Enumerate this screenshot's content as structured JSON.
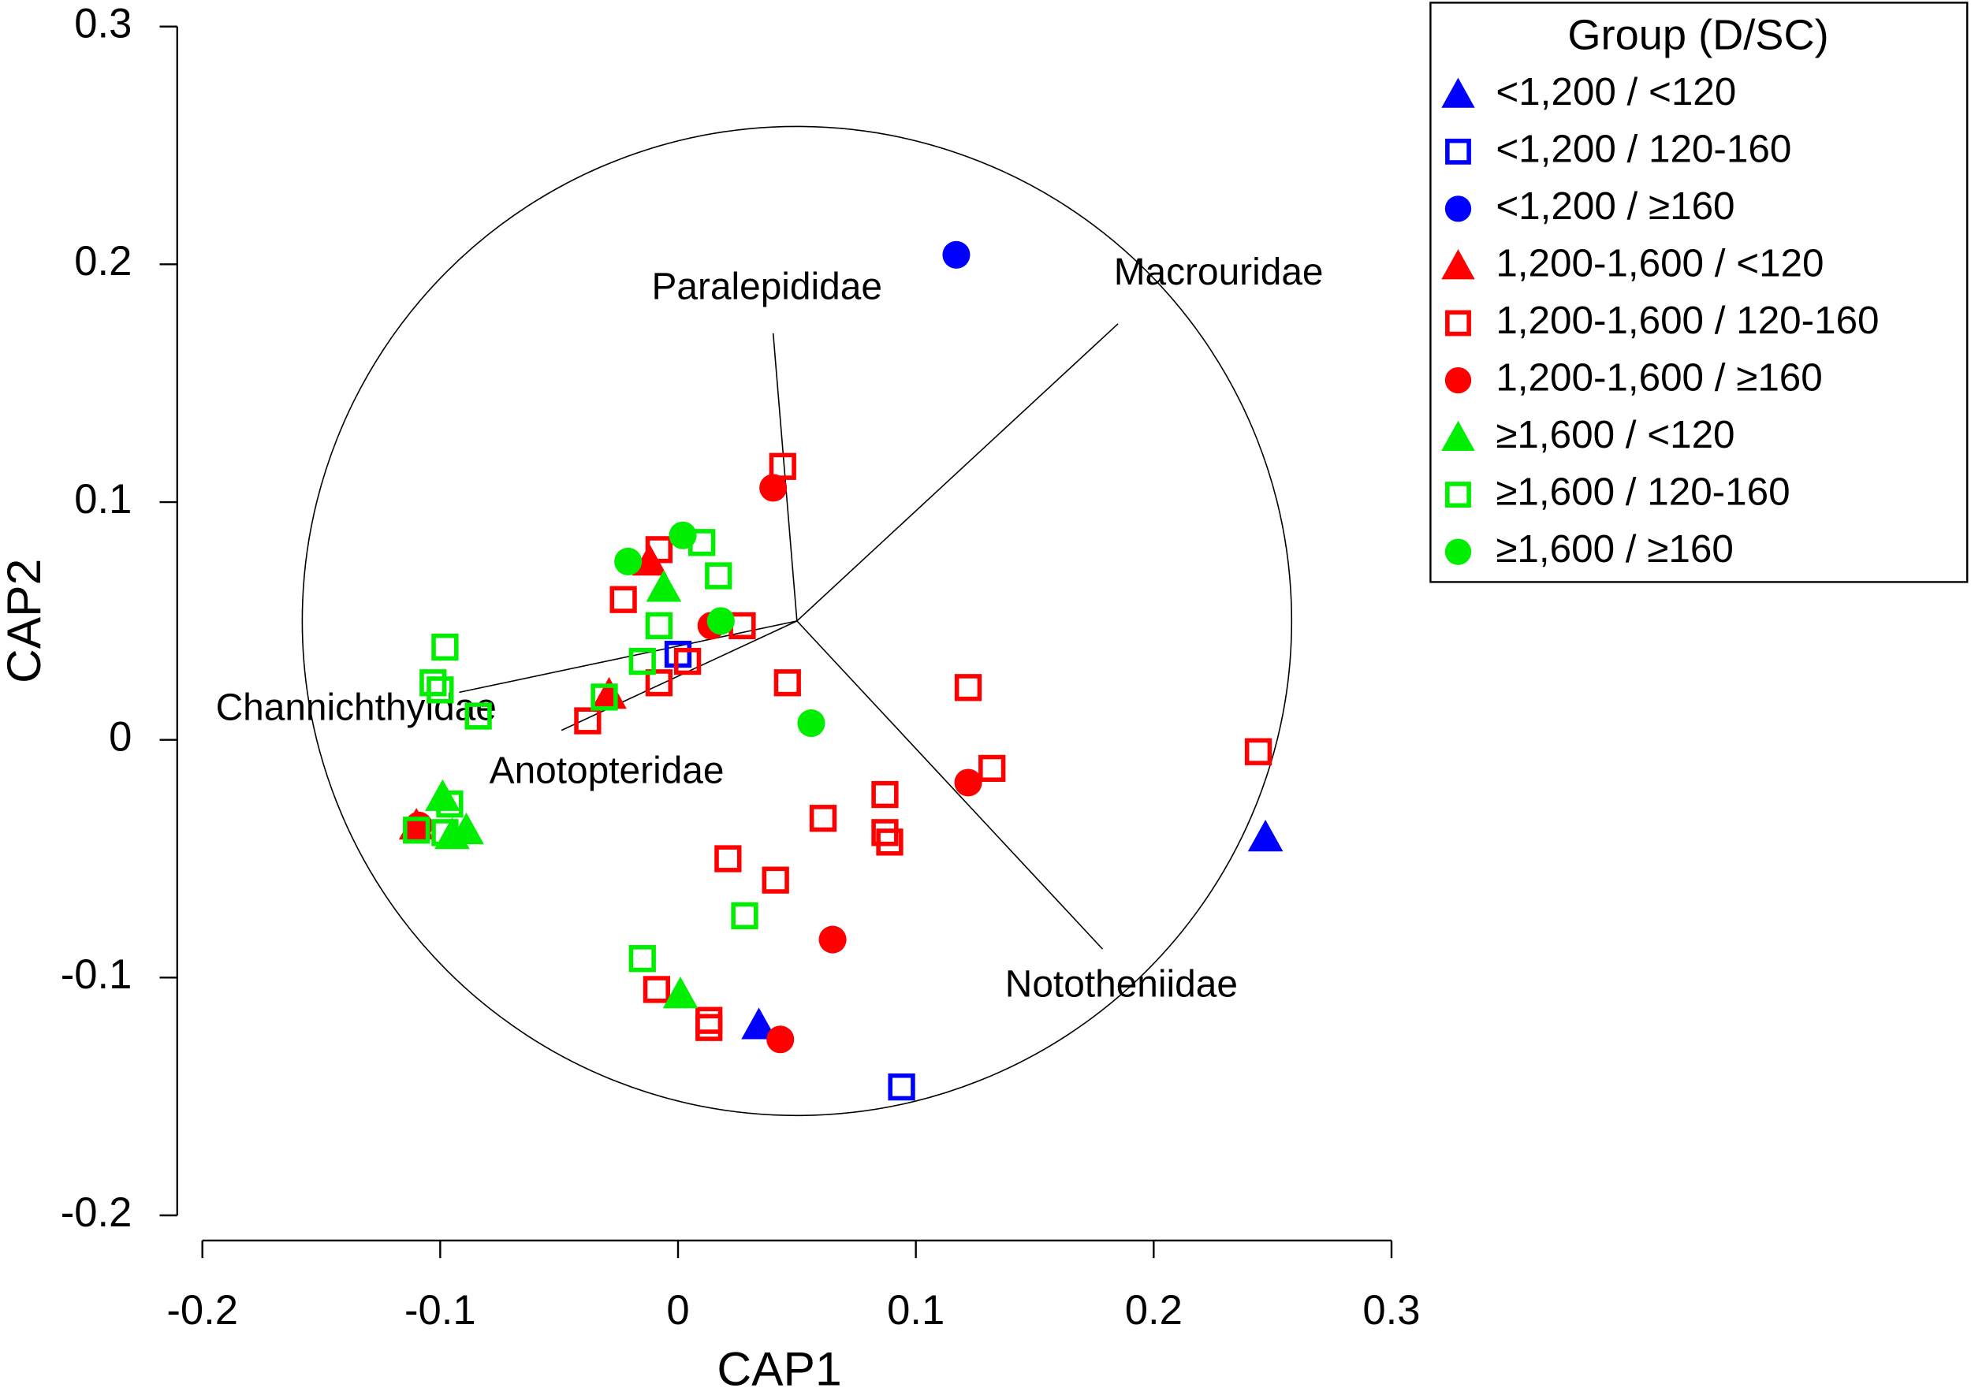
{
  "chart_data": {
    "type": "scatter",
    "x_label": "CAP1",
    "y_label": "CAP2",
    "xlim": [
      -0.2,
      0.3
    ],
    "ylim": [
      -0.2,
      0.3
    ],
    "xticks": [
      -0.2,
      -0.1,
      0,
      0.1,
      0.2,
      0.3
    ],
    "yticks": [
      -0.2,
      -0.1,
      0,
      0.1,
      0.2,
      0.3
    ],
    "legend_title": "Group (D/SC)",
    "legend_position": "outside-top-right",
    "circle": {
      "center": [
        0.05,
        0.05
      ],
      "radius": 0.208
    },
    "vectors": [
      {
        "name": "Paralepididae",
        "x": 0.04,
        "y": 0.171
      },
      {
        "name": "Macrouridae",
        "x": 0.185,
        "y": 0.175
      },
      {
        "name": "Nototheniidae",
        "x": 0.1785,
        "y": -0.088
      },
      {
        "name": "Channichthyidae",
        "x": -0.092,
        "y": 0.02
      },
      {
        "name": "Anotopteridae",
        "x": -0.049,
        "y": 0.004
      }
    ],
    "series": [
      {
        "name": "<1,200 / <120",
        "color": "#0000ff",
        "marker": "triangle",
        "x": [
          0.247,
          0.034
        ],
        "values": [
          -0.041,
          -0.12
        ]
      },
      {
        "name": "<1,200 / 120-160",
        "color": "#0000ff",
        "marker": "square-open",
        "x": [
          0.0,
          0.094
        ],
        "values": [
          0.036,
          -0.146
        ]
      },
      {
        "name": "<1,200 / ≥160",
        "color": "#0000ff",
        "marker": "circle",
        "x": [
          0.117
        ],
        "values": [
          0.204
        ]
      },
      {
        "name": "1,200-1,600 / <120",
        "color": "#ff0000",
        "marker": "triangle",
        "x": [
          -0.012,
          -0.11,
          -0.029
        ],
        "values": [
          0.075,
          -0.036,
          0.019
        ]
      },
      {
        "name": "1,200-1,600 / 120-160",
        "color": "#ff0000",
        "marker": "square-open",
        "x": [
          0.044,
          -0.008,
          -0.023,
          0.027,
          0.004,
          -0.008,
          0.046,
          -0.038,
          0.122,
          0.132,
          0.244,
          0.087,
          0.061,
          0.087,
          0.089,
          0.021,
          0.041,
          -0.009,
          0.013,
          0.013
        ],
        "values": [
          0.115,
          0.08,
          0.059,
          0.048,
          0.033,
          0.024,
          0.024,
          0.008,
          0.022,
          -0.012,
          -0.005,
          -0.023,
          -0.033,
          -0.039,
          -0.043,
          -0.05,
          -0.059,
          -0.105,
          -0.118,
          -0.121
        ]
      },
      {
        "name": "1,200-1,600 / ≥160",
        "color": "#ff0000",
        "marker": "circle",
        "x": [
          0.04,
          0.122,
          0.065,
          0.043,
          0.014,
          -0.109
        ],
        "values": [
          0.106,
          -0.018,
          -0.084,
          -0.126,
          0.048,
          -0.036
        ]
      },
      {
        "name": "≥1,600 / <120",
        "color": "#00ee00",
        "marker": "triangle",
        "x": [
          -0.006,
          0.001,
          -0.099,
          -0.089,
          -0.095
        ],
        "values": [
          0.064,
          -0.107,
          -0.024,
          -0.038,
          -0.04
        ]
      },
      {
        "name": "≥1,600 / 120-160",
        "color": "#00ee00",
        "marker": "square-open",
        "x": [
          0.01,
          0.017,
          -0.008,
          -0.015,
          -0.098,
          -0.103,
          -0.1,
          -0.084,
          -0.031,
          -0.096,
          -0.11,
          -0.098,
          0.028,
          -0.015
        ],
        "values": [
          0.083,
          0.069,
          0.048,
          0.033,
          0.039,
          0.024,
          0.021,
          0.01,
          0.018,
          -0.027,
          -0.038,
          -0.039,
          -0.074,
          -0.092
        ]
      },
      {
        "name": "≥1,600 / ≥160",
        "color": "#00ee00",
        "marker": "circle",
        "x": [
          0.002,
          -0.021,
          0.018,
          0.056
        ],
        "values": [
          0.086,
          0.075,
          0.05,
          0.007
        ]
      }
    ]
  }
}
